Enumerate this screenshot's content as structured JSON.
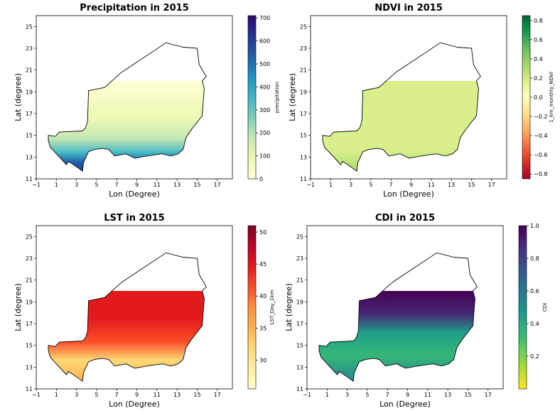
{
  "chart_data": [
    {
      "type": "heatmap",
      "title": "Precipitation in 2015",
      "xlabel": "Lon (Degree)",
      "ylabel": "Lat (degree)",
      "xlim": [
        -1,
        18.5
      ],
      "ylim": [
        11,
        26
      ],
      "xticks": [
        "−1",
        "1",
        "3",
        "5",
        "7",
        "9",
        "11",
        "13",
        "15",
        "17"
      ],
      "yticks": [
        "11",
        "13",
        "15",
        "17",
        "19",
        "21",
        "23",
        "25"
      ],
      "colorbar": {
        "label": "precipitation",
        "range": [
          0,
          710
        ],
        "ticks": [
          "0",
          "100",
          "200",
          "300",
          "400",
          "500",
          "600",
          "700"
        ],
        "colormap": "YlGnBu",
        "colors": [
          "#ffffd9",
          "#edf8b1",
          "#c7e9b4",
          "#7fcdbb",
          "#41b6c4",
          "#1d91c0",
          "#225ea8",
          "#253494",
          "#2a0a6e"
        ]
      }
    },
    {
      "type": "heatmap",
      "title": "NDVI in 2015",
      "xlabel": "Lon (Degree)",
      "ylabel": "Lat (degree)",
      "xlim": [
        -1,
        18.5
      ],
      "ylim": [
        11,
        26
      ],
      "xticks": [
        "−1",
        "1",
        "3",
        "5",
        "7",
        "9",
        "11",
        "13",
        "15",
        "17"
      ],
      "yticks": [
        "11",
        "13",
        "15",
        "17",
        "19",
        "21",
        "23",
        "25"
      ],
      "colorbar": {
        "label": "1_km_monthly_NDVI",
        "range": [
          -0.85,
          0.85
        ],
        "ticks": [
          "−0.8",
          "−0.6",
          "−0.4",
          "−0.2",
          "0.0",
          "0.2",
          "0.4",
          "0.6",
          "0.8"
        ],
        "colormap": "RdYlGn",
        "colors": [
          "#a50026",
          "#d73027",
          "#f46d43",
          "#fdae61",
          "#fee08b",
          "#ffffbf",
          "#d9ef8b",
          "#a6d96a",
          "#66bd63",
          "#1a9850",
          "#006837"
        ]
      }
    },
    {
      "type": "heatmap",
      "title": "LST in 2015",
      "xlabel": "Lon (Degree)",
      "ylabel": "Lat (degree)",
      "xlim": [
        -1,
        18.5
      ],
      "ylim": [
        11,
        26
      ],
      "xticks": [
        "−1",
        "1",
        "3",
        "5",
        "7",
        "9",
        "11",
        "13",
        "15",
        "17"
      ],
      "yticks": [
        "11",
        "13",
        "15",
        "17",
        "19",
        "21",
        "23",
        "25"
      ],
      "colorbar": {
        "label": "LST_Day_1km",
        "range": [
          25.5,
          51
        ],
        "ticks": [
          "30",
          "35",
          "40",
          "45",
          "50"
        ],
        "colormap": "YlOrRd",
        "colors": [
          "#ffffcc",
          "#ffeda0",
          "#fed976",
          "#feb24c",
          "#fd8d3c",
          "#fc4e2a",
          "#e31a1c",
          "#bd0026",
          "#800026"
        ]
      }
    },
    {
      "type": "heatmap",
      "title": "CDI in 2015",
      "xlabel": "Lon (Degree)",
      "ylabel": "Lat (degree)",
      "xlim": [
        -1,
        18.5
      ],
      "ylim": [
        11,
        26
      ],
      "xticks": [
        "−1",
        "1",
        "3",
        "5",
        "7",
        "9",
        "11",
        "13",
        "15",
        "17"
      ],
      "yticks": [
        "11",
        "13",
        "15",
        "17",
        "19",
        "21",
        "23",
        "25"
      ],
      "colorbar": {
        "label": "CDI",
        "range": [
          0,
          1
        ],
        "ticks": [
          "0.2",
          "0.4",
          "0.6",
          "0.8",
          "1.0"
        ],
        "colormap": "viridis_r",
        "colors": [
          "#fde725",
          "#b5de2b",
          "#6ece58",
          "#35b779",
          "#1f9e89",
          "#26828e",
          "#31688e",
          "#3e4989",
          "#482878",
          "#440154"
        ]
      }
    }
  ]
}
